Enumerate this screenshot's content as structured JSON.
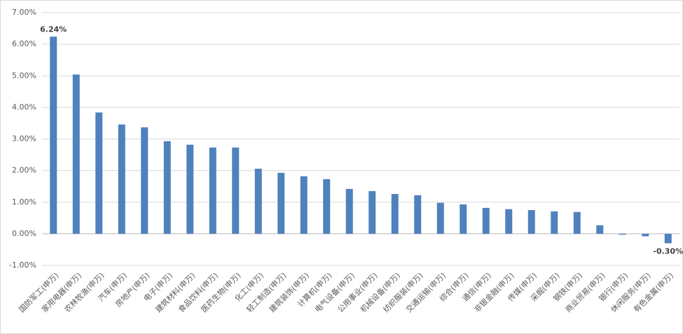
{
  "chart_data": {
    "type": "bar",
    "categories": [
      "国防军工(申万)",
      "家用电器(申万)",
      "农林牧渔(申万)",
      "汽车(申万)",
      "房地产(申万)",
      "电子(申万)",
      "建筑材料(申万)",
      "食品饮料(申万)",
      "医药生物(申万)",
      "化工(申万)",
      "轻工制造(申万)",
      "建筑装饰(申万)",
      "计算机(申万)",
      "电气设备(申万)",
      "公用事业(申万)",
      "机械设备(申万)",
      "纺织服装(申万)",
      "交通运输(申万)",
      "综合(申万)",
      "通信(申万)",
      "非银金融(申万)",
      "传媒(申万)",
      "采掘(申万)",
      "钢铁(申万)",
      "商业贸易(申万)",
      "银行(申万)",
      "休闲服务(申万)",
      "有色金属(申万)"
    ],
    "values": [
      6.24,
      5.04,
      3.84,
      3.46,
      3.37,
      2.93,
      2.82,
      2.73,
      2.73,
      2.06,
      1.93,
      1.82,
      1.73,
      1.42,
      1.35,
      1.26,
      1.22,
      0.98,
      0.93,
      0.82,
      0.78,
      0.75,
      0.71,
      0.69,
      0.27,
      -0.03,
      -0.08,
      -0.3
    ],
    "value_labels": [
      "6.24%",
      null,
      null,
      null,
      null,
      null,
      null,
      null,
      null,
      null,
      null,
      null,
      null,
      null,
      null,
      null,
      null,
      null,
      null,
      null,
      null,
      null,
      null,
      null,
      null,
      null,
      null,
      "-0.30%"
    ],
    "color": "#4f81bd",
    "ylim": [
      -1,
      7
    ],
    "yticks": [
      {
        "value": -1,
        "label": "-1.00%"
      },
      {
        "value": 0,
        "label": "0.00%"
      },
      {
        "value": 1,
        "label": "1.00%"
      },
      {
        "value": 2,
        "label": "2.00%"
      },
      {
        "value": 3,
        "label": "3.00%"
      },
      {
        "value": 4,
        "label": "4.00%"
      },
      {
        "value": 5,
        "label": "5.00%"
      },
      {
        "value": 6,
        "label": "6.00%"
      },
      {
        "value": 7,
        "label": "7.00%"
      }
    ],
    "grid": true
  }
}
